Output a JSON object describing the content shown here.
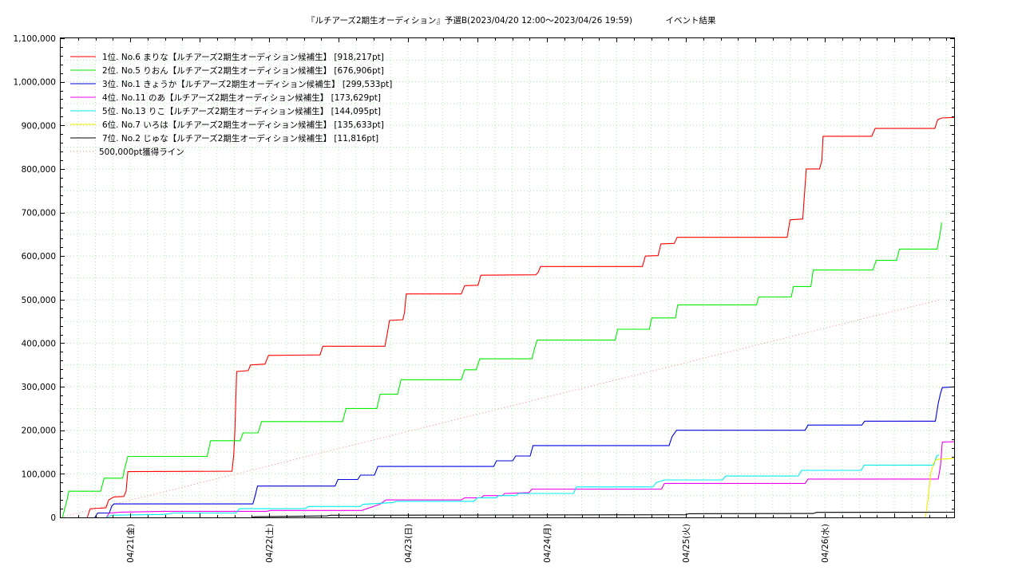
{
  "chart_data": {
    "type": "line",
    "title": "『ルチアーズ2期生オーディション』予選B(2023/04/20 12:00～2023/04/26 19:59)",
    "subtitle": "イベント結果",
    "xlabel": "",
    "ylabel": "",
    "x_unit": "hours since 2023/04/20 12:00",
    "xlim": [
      0,
      151.98
    ],
    "ylim": [
      0,
      1100000
    ],
    "x_ticks": [
      {
        "x": 12,
        "label": "04/21(金)"
      },
      {
        "x": 36,
        "label": "04/22(土)"
      },
      {
        "x": 60,
        "label": "04/23(日)"
      },
      {
        "x": 84,
        "label": "04/24(月)"
      },
      {
        "x": 108,
        "label": "04/25(火)"
      },
      {
        "x": 132,
        "label": "04/26(水)"
      }
    ],
    "y_ticks": [
      {
        "y": 0,
        "label": "0"
      },
      {
        "y": 100000,
        "label": "100,000"
      },
      {
        "y": 200000,
        "label": "200,000"
      },
      {
        "y": 300000,
        "label": "300,000"
      },
      {
        "y": 400000,
        "label": "400,000"
      },
      {
        "y": 500000,
        "label": "500,000"
      },
      {
        "y": 600000,
        "label": "600,000"
      },
      {
        "y": 700000,
        "label": "700,000"
      },
      {
        "y": 800000,
        "label": "800,000"
      },
      {
        "y": 900000,
        "label": "900,000"
      },
      {
        "y": 1000000,
        "label": "1,000,000"
      },
      {
        "y": 1100000,
        "label": "1,100,000"
      }
    ],
    "grid": true,
    "legend_position": "top-left",
    "series": [
      {
        "name": "1位. No.6 まりな【ルチアーズ2期生オーディション候補生】 [918,217pt]",
        "color": "#ff0000",
        "points": [
          [
            4.6,
            0
          ],
          [
            5.1,
            20000
          ],
          [
            7.8,
            22000
          ],
          [
            8.3,
            40000
          ],
          [
            9.2,
            47000
          ],
          [
            10.9,
            48000
          ],
          [
            11.3,
            60000
          ],
          [
            11.6,
            105000
          ],
          [
            29.6,
            106000
          ],
          [
            29.9,
            145000
          ],
          [
            30.1,
            200000
          ],
          [
            30.4,
            335000
          ],
          [
            32.4,
            337000
          ],
          [
            32.8,
            350000
          ],
          [
            35.3,
            352000
          ],
          [
            35.6,
            362000
          ],
          [
            35.9,
            372000
          ],
          [
            44.8,
            373000
          ],
          [
            45.3,
            393000
          ],
          [
            56.0,
            393000
          ],
          [
            56.4,
            420000
          ],
          [
            56.8,
            452000
          ],
          [
            59.1,
            454000
          ],
          [
            59.4,
            470000
          ],
          [
            59.7,
            513000
          ],
          [
            69.2,
            513000
          ],
          [
            69.8,
            532000
          ],
          [
            72.1,
            533000
          ],
          [
            72.6,
            556000
          ],
          [
            82.1,
            557000
          ],
          [
            82.5,
            563000
          ],
          [
            82.9,
            576000
          ],
          [
            100.5,
            576000
          ],
          [
            101.0,
            600000
          ],
          [
            103.2,
            601000
          ],
          [
            103.7,
            628000
          ],
          [
            106.0,
            629000
          ],
          [
            106.5,
            643000
          ],
          [
            125.5,
            643000
          ],
          [
            126.0,
            683000
          ],
          [
            128.2,
            685000
          ],
          [
            128.8,
            800000
          ],
          [
            131.1,
            800000
          ],
          [
            131.5,
            820000
          ],
          [
            131.7,
            875000
          ],
          [
            140.1,
            875000
          ],
          [
            140.7,
            893000
          ],
          [
            151.0,
            893000
          ],
          [
            151.5,
            913000
          ],
          [
            152.2,
            917000
          ],
          [
            154.5,
            918217
          ]
        ]
      },
      {
        "name": "2位. No.5 りおん【ルチアーズ2期生オーディション候補生】 [676,906pt]",
        "color": "#00ee00",
        "points": [
          [
            0.3,
            0
          ],
          [
            1.1,
            40000
          ],
          [
            1.4,
            60000
          ],
          [
            6.9,
            60000
          ],
          [
            7.5,
            90000
          ],
          [
            10.7,
            90000
          ],
          [
            11.1,
            115000
          ],
          [
            11.6,
            140000
          ],
          [
            25.3,
            140000
          ],
          [
            25.9,
            176000
          ],
          [
            31.0,
            176000
          ],
          [
            31.5,
            194000
          ],
          [
            34.1,
            194000
          ],
          [
            34.7,
            220000
          ],
          [
            48.7,
            220000
          ],
          [
            49.3,
            250000
          ],
          [
            54.6,
            250000
          ],
          [
            55.2,
            283000
          ],
          [
            58.2,
            283000
          ],
          [
            58.8,
            316000
          ],
          [
            69.2,
            316000
          ],
          [
            69.8,
            339000
          ],
          [
            71.8,
            339000
          ],
          [
            72.4,
            364000
          ],
          [
            81.4,
            364000
          ],
          [
            81.9,
            390000
          ],
          [
            82.3,
            407000
          ],
          [
            95.8,
            407000
          ],
          [
            96.2,
            432000
          ],
          [
            101.7,
            432000
          ],
          [
            102.1,
            458000
          ],
          [
            106.2,
            458000
          ],
          [
            106.6,
            488000
          ],
          [
            120.2,
            488000
          ],
          [
            120.6,
            506000
          ],
          [
            126.2,
            506000
          ],
          [
            126.6,
            530000
          ],
          [
            129.6,
            530000
          ],
          [
            130.0,
            568000
          ],
          [
            140.3,
            568000
          ],
          [
            140.9,
            590000
          ],
          [
            144.4,
            590000
          ],
          [
            144.9,
            616000
          ],
          [
            151.4,
            616000
          ],
          [
            151.9,
            650000
          ],
          [
            152.2,
            676906
          ]
        ]
      },
      {
        "name": "3位. No.1 きょうか【ルチアーズ2期生オーディション候補生】 [299,533pt]",
        "color": "#0000dd",
        "points": [
          [
            5.9,
            0
          ],
          [
            6.4,
            10000
          ],
          [
            8.4,
            10000
          ],
          [
            8.8,
            25000
          ],
          [
            9.2,
            31000
          ],
          [
            33.2,
            31000
          ],
          [
            33.6,
            50000
          ],
          [
            34.0,
            72000
          ],
          [
            47.4,
            72000
          ],
          [
            47.9,
            87000
          ],
          [
            51.3,
            87000
          ],
          [
            51.8,
            97000
          ],
          [
            54.2,
            97000
          ],
          [
            54.8,
            117000
          ],
          [
            74.8,
            117000
          ],
          [
            75.3,
            130000
          ],
          [
            78.1,
            130000
          ],
          [
            78.6,
            141000
          ],
          [
            81.1,
            141000
          ],
          [
            81.6,
            165000
          ],
          [
            105.1,
            165000
          ],
          [
            105.6,
            185000
          ],
          [
            106.4,
            200000
          ],
          [
            128.6,
            200000
          ],
          [
            129.1,
            212000
          ],
          [
            138.4,
            212000
          ],
          [
            138.9,
            221000
          ],
          [
            151.1,
            221000
          ],
          [
            151.6,
            262000
          ],
          [
            152.0,
            285000
          ],
          [
            152.3,
            298000
          ],
          [
            155.0,
            299533
          ]
        ]
      },
      {
        "name": "4位. No.11 のあ【ルチアーズ2期生オーディション候補生】 [173,629pt]",
        "color": "#ee00ee",
        "points": [
          [
            7.9,
            0
          ],
          [
            8.4,
            10000
          ],
          [
            10.4,
            12000
          ],
          [
            18.0,
            14000
          ],
          [
            35.6,
            14000
          ],
          [
            36.2,
            16000
          ],
          [
            52.0,
            16000
          ],
          [
            55.1,
            30000
          ],
          [
            56.2,
            40000
          ],
          [
            69.2,
            40000
          ],
          [
            69.8,
            45000
          ],
          [
            72.6,
            45000
          ],
          [
            73.1,
            50000
          ],
          [
            76.3,
            50000
          ],
          [
            76.7,
            55000
          ],
          [
            80.9,
            57000
          ],
          [
            81.4,
            65000
          ],
          [
            103.8,
            65000
          ],
          [
            104.3,
            78000
          ],
          [
            128.6,
            78000
          ],
          [
            129.1,
            88000
          ],
          [
            151.6,
            88000
          ],
          [
            152.0,
            120000
          ],
          [
            152.3,
            173000
          ],
          [
            155.0,
            173629
          ]
        ]
      },
      {
        "name": "5位. No.13 りこ【ルチアーズ2期生オーディション候補生】 [144,095pt]",
        "color": "#00eeee",
        "points": [
          [
            7.9,
            0
          ],
          [
            8.8,
            5000
          ],
          [
            18.0,
            7000
          ],
          [
            19.5,
            10000
          ],
          [
            30.3,
            10000
          ],
          [
            30.9,
            20000
          ],
          [
            42.2,
            20000
          ],
          [
            42.8,
            25000
          ],
          [
            51.8,
            25000
          ],
          [
            52.2,
            30000
          ],
          [
            57.4,
            34000
          ],
          [
            58.0,
            37000
          ],
          [
            71.4,
            37000
          ],
          [
            72.0,
            45000
          ],
          [
            75.2,
            45000
          ],
          [
            75.7,
            50000
          ],
          [
            78.6,
            50000
          ],
          [
            79.1,
            55000
          ],
          [
            88.6,
            55000
          ],
          [
            89.1,
            70000
          ],
          [
            102.3,
            70000
          ],
          [
            102.9,
            80000
          ],
          [
            104.3,
            86000
          ],
          [
            114.3,
            86000
          ],
          [
            114.9,
            95000
          ],
          [
            127.4,
            95000
          ],
          [
            128.0,
            108000
          ],
          [
            138.3,
            108000
          ],
          [
            138.8,
            120000
          ],
          [
            150.8,
            120000
          ],
          [
            151.3,
            140000
          ],
          [
            151.7,
            144095
          ]
        ]
      },
      {
        "name": "6位. No.7 いろは【ルチアーズ2期生オーディション候補生】 [135,633pt]",
        "color": "#eeee00",
        "points": [
          [
            149.4,
            0
          ],
          [
            149.8,
            40000
          ],
          [
            150.3,
            100000
          ],
          [
            150.8,
            125000
          ],
          [
            151.3,
            133000
          ],
          [
            155.0,
            135633
          ]
        ]
      },
      {
        "name": "7位. No.2 じゅな【ルチアーズ2期生オーディション候補生】 [11,816pt]",
        "color": "#000000",
        "points": [
          [
            33.0,
            0
          ],
          [
            33.5,
            1500
          ],
          [
            46.0,
            3500
          ],
          [
            46.6,
            5000
          ],
          [
            108.0,
            6000
          ],
          [
            108.5,
            8500
          ],
          [
            130.0,
            9000
          ],
          [
            130.6,
            11500
          ],
          [
            155.0,
            11816
          ]
        ]
      },
      {
        "name": "500,000pt獲得ライン",
        "color": "#ff8080",
        "dotted": true,
        "points": [
          [
            0,
            0
          ],
          [
            151.98,
            500000
          ]
        ]
      }
    ]
  }
}
